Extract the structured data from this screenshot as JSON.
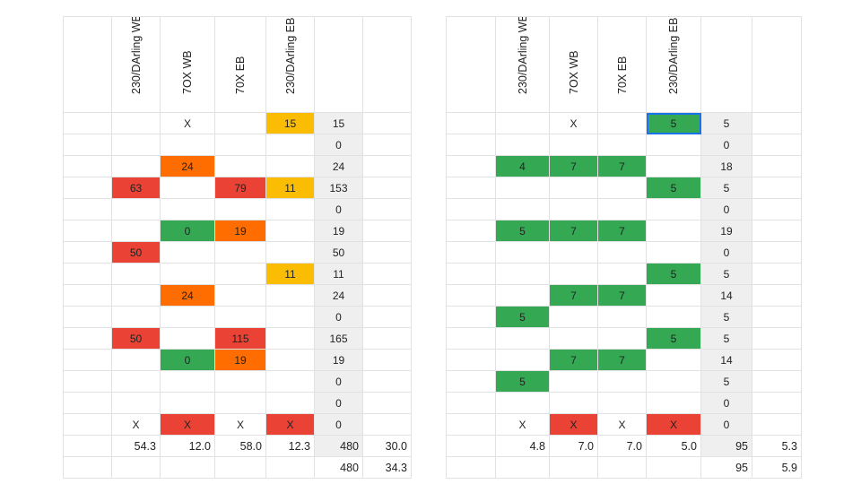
{
  "colors": {
    "red": "#ea4335",
    "orange": "#ff6d01",
    "amber": "#fbbc04",
    "green": "#34a853",
    "sum_column_bg": "#efefef",
    "selection": "#1a73e8"
  },
  "tables": [
    {
      "headers": [
        "",
        "230/DArling WB",
        "7OX WB",
        "70X EB",
        "230/DArling EB",
        "",
        ""
      ],
      "rows": [
        [
          {
            "v": ""
          },
          {
            "v": ""
          },
          {
            "v": "X"
          },
          {
            "v": ""
          },
          {
            "v": "15",
            "c": "amber"
          },
          {
            "v": "15",
            "sum": true
          },
          {
            "v": ""
          }
        ],
        [
          {
            "v": ""
          },
          {
            "v": ""
          },
          {
            "v": ""
          },
          {
            "v": ""
          },
          {
            "v": ""
          },
          {
            "v": "0",
            "sum": true
          },
          {
            "v": ""
          }
        ],
        [
          {
            "v": ""
          },
          {
            "v": ""
          },
          {
            "v": "24",
            "c": "orange"
          },
          {
            "v": ""
          },
          {
            "v": ""
          },
          {
            "v": "24",
            "sum": true
          },
          {
            "v": ""
          }
        ],
        [
          {
            "v": ""
          },
          {
            "v": "63",
            "c": "red"
          },
          {
            "v": ""
          },
          {
            "v": "79",
            "c": "red"
          },
          {
            "v": "11",
            "c": "amber"
          },
          {
            "v": "153",
            "sum": true
          },
          {
            "v": ""
          }
        ],
        [
          {
            "v": ""
          },
          {
            "v": ""
          },
          {
            "v": ""
          },
          {
            "v": ""
          },
          {
            "v": ""
          },
          {
            "v": "0",
            "sum": true
          },
          {
            "v": ""
          }
        ],
        [
          {
            "v": ""
          },
          {
            "v": ""
          },
          {
            "v": "0",
            "c": "green"
          },
          {
            "v": "19",
            "c": "orange"
          },
          {
            "v": ""
          },
          {
            "v": "19",
            "sum": true
          },
          {
            "v": ""
          }
        ],
        [
          {
            "v": ""
          },
          {
            "v": "50",
            "c": "red"
          },
          {
            "v": ""
          },
          {
            "v": ""
          },
          {
            "v": ""
          },
          {
            "v": "50",
            "sum": true
          },
          {
            "v": ""
          }
        ],
        [
          {
            "v": ""
          },
          {
            "v": ""
          },
          {
            "v": ""
          },
          {
            "v": ""
          },
          {
            "v": "11",
            "c": "amber"
          },
          {
            "v": "11",
            "sum": true
          },
          {
            "v": ""
          }
        ],
        [
          {
            "v": ""
          },
          {
            "v": ""
          },
          {
            "v": "24",
            "c": "orange"
          },
          {
            "v": ""
          },
          {
            "v": ""
          },
          {
            "v": "24",
            "sum": true
          },
          {
            "v": ""
          }
        ],
        [
          {
            "v": ""
          },
          {
            "v": ""
          },
          {
            "v": ""
          },
          {
            "v": ""
          },
          {
            "v": ""
          },
          {
            "v": "0",
            "sum": true
          },
          {
            "v": ""
          }
        ],
        [
          {
            "v": ""
          },
          {
            "v": "50",
            "c": "red"
          },
          {
            "v": ""
          },
          {
            "v": "115",
            "c": "red"
          },
          {
            "v": ""
          },
          {
            "v": "165",
            "sum": true
          },
          {
            "v": ""
          }
        ],
        [
          {
            "v": ""
          },
          {
            "v": ""
          },
          {
            "v": "0",
            "c": "green"
          },
          {
            "v": "19",
            "c": "orange"
          },
          {
            "v": ""
          },
          {
            "v": "19",
            "sum": true
          },
          {
            "v": ""
          }
        ],
        [
          {
            "v": ""
          },
          {
            "v": ""
          },
          {
            "v": ""
          },
          {
            "v": ""
          },
          {
            "v": ""
          },
          {
            "v": "0",
            "sum": true
          },
          {
            "v": ""
          }
        ],
        [
          {
            "v": ""
          },
          {
            "v": ""
          },
          {
            "v": ""
          },
          {
            "v": ""
          },
          {
            "v": ""
          },
          {
            "v": "0",
            "sum": true
          },
          {
            "v": ""
          }
        ],
        [
          {
            "v": ""
          },
          {
            "v": "X"
          },
          {
            "v": "X",
            "c": "red"
          },
          {
            "v": "X"
          },
          {
            "v": "X",
            "c": "red"
          },
          {
            "v": "0",
            "sum": true
          },
          {
            "v": ""
          }
        ],
        [
          {
            "v": ""
          },
          {
            "v": "54.3",
            "num": true
          },
          {
            "v": "12.0",
            "num": true
          },
          {
            "v": "58.0",
            "num": true
          },
          {
            "v": "12.3",
            "num": true
          },
          {
            "v": "480",
            "num": true,
            "sum": true
          },
          {
            "v": "30.0",
            "num": true
          }
        ],
        [
          {
            "v": ""
          },
          {
            "v": ""
          },
          {
            "v": ""
          },
          {
            "v": ""
          },
          {
            "v": ""
          },
          {
            "v": "480",
            "num": true
          },
          {
            "v": "34.3",
            "num": true
          }
        ]
      ]
    },
    {
      "headers": [
        "",
        "230/DArling WB",
        "7OX WB",
        "70X EB",
        "230/DArling EB",
        "",
        ""
      ],
      "rows": [
        [
          {
            "v": ""
          },
          {
            "v": ""
          },
          {
            "v": "X"
          },
          {
            "v": ""
          },
          {
            "v": "5",
            "c": "green",
            "sel": true
          },
          {
            "v": "5",
            "sum": true
          },
          {
            "v": ""
          }
        ],
        [
          {
            "v": ""
          },
          {
            "v": ""
          },
          {
            "v": ""
          },
          {
            "v": ""
          },
          {
            "v": ""
          },
          {
            "v": "0",
            "sum": true
          },
          {
            "v": ""
          }
        ],
        [
          {
            "v": ""
          },
          {
            "v": "4",
            "c": "green"
          },
          {
            "v": "7",
            "c": "green"
          },
          {
            "v": "7",
            "c": "green"
          },
          {
            "v": ""
          },
          {
            "v": "18",
            "sum": true
          },
          {
            "v": ""
          }
        ],
        [
          {
            "v": ""
          },
          {
            "v": ""
          },
          {
            "v": ""
          },
          {
            "v": ""
          },
          {
            "v": "5",
            "c": "green"
          },
          {
            "v": "5",
            "sum": true
          },
          {
            "v": ""
          }
        ],
        [
          {
            "v": ""
          },
          {
            "v": ""
          },
          {
            "v": ""
          },
          {
            "v": ""
          },
          {
            "v": ""
          },
          {
            "v": "0",
            "sum": true
          },
          {
            "v": ""
          }
        ],
        [
          {
            "v": ""
          },
          {
            "v": "5",
            "c": "green"
          },
          {
            "v": "7",
            "c": "green"
          },
          {
            "v": "7",
            "c": "green"
          },
          {
            "v": ""
          },
          {
            "v": "19",
            "sum": true
          },
          {
            "v": ""
          }
        ],
        [
          {
            "v": ""
          },
          {
            "v": ""
          },
          {
            "v": ""
          },
          {
            "v": ""
          },
          {
            "v": ""
          },
          {
            "v": "0",
            "sum": true
          },
          {
            "v": ""
          }
        ],
        [
          {
            "v": ""
          },
          {
            "v": ""
          },
          {
            "v": ""
          },
          {
            "v": ""
          },
          {
            "v": "5",
            "c": "green"
          },
          {
            "v": "5",
            "sum": true
          },
          {
            "v": ""
          }
        ],
        [
          {
            "v": ""
          },
          {
            "v": ""
          },
          {
            "v": "7",
            "c": "green"
          },
          {
            "v": "7",
            "c": "green"
          },
          {
            "v": ""
          },
          {
            "v": "14",
            "sum": true
          },
          {
            "v": ""
          }
        ],
        [
          {
            "v": ""
          },
          {
            "v": "5",
            "c": "green"
          },
          {
            "v": ""
          },
          {
            "v": ""
          },
          {
            "v": ""
          },
          {
            "v": "5",
            "sum": true
          },
          {
            "v": ""
          }
        ],
        [
          {
            "v": ""
          },
          {
            "v": ""
          },
          {
            "v": ""
          },
          {
            "v": ""
          },
          {
            "v": "5",
            "c": "green"
          },
          {
            "v": "5",
            "sum": true
          },
          {
            "v": ""
          }
        ],
        [
          {
            "v": ""
          },
          {
            "v": ""
          },
          {
            "v": "7",
            "c": "green"
          },
          {
            "v": "7",
            "c": "green"
          },
          {
            "v": ""
          },
          {
            "v": "14",
            "sum": true
          },
          {
            "v": ""
          }
        ],
        [
          {
            "v": ""
          },
          {
            "v": "5",
            "c": "green"
          },
          {
            "v": ""
          },
          {
            "v": ""
          },
          {
            "v": ""
          },
          {
            "v": "5",
            "sum": true
          },
          {
            "v": ""
          }
        ],
        [
          {
            "v": ""
          },
          {
            "v": ""
          },
          {
            "v": ""
          },
          {
            "v": ""
          },
          {
            "v": ""
          },
          {
            "v": "0",
            "sum": true
          },
          {
            "v": ""
          }
        ],
        [
          {
            "v": ""
          },
          {
            "v": "X"
          },
          {
            "v": "X",
            "c": "red"
          },
          {
            "v": "X"
          },
          {
            "v": "X",
            "c": "red"
          },
          {
            "v": "0",
            "sum": true
          },
          {
            "v": ""
          }
        ],
        [
          {
            "v": ""
          },
          {
            "v": "4.8",
            "num": true
          },
          {
            "v": "7.0",
            "num": true
          },
          {
            "v": "7.0",
            "num": true
          },
          {
            "v": "5.0",
            "num": true
          },
          {
            "v": "95",
            "num": true,
            "sum": true
          },
          {
            "v": "5.3",
            "num": true
          }
        ],
        [
          {
            "v": ""
          },
          {
            "v": ""
          },
          {
            "v": ""
          },
          {
            "v": ""
          },
          {
            "v": ""
          },
          {
            "v": "95",
            "num": true
          },
          {
            "v": "5.9",
            "num": true
          }
        ]
      ]
    }
  ]
}
